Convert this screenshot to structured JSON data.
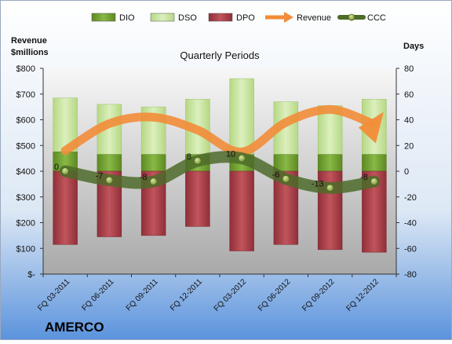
{
  "chart_data": {
    "type": "bar",
    "title": "Quarterly Periods",
    "company": "AMERCO",
    "y_left_label": [
      "Revenue",
      "$millions"
    ],
    "y_right_label": "Days",
    "categories": [
      "FQ 03-2011",
      "FQ 06-2011",
      "FQ 09-2011",
      "FQ 12-2011",
      "FQ 03-2012",
      "FQ 06-2012",
      "FQ 09-2012",
      "FQ 12-2012"
    ],
    "y_left_ticks": [
      "$-",
      "$100",
      "$200",
      "$300",
      "$400",
      "$500",
      "$600",
      "$700",
      "$800"
    ],
    "y_left_range": [
      0,
      800
    ],
    "y_right_ticks": [
      "-80",
      "-60",
      "-40",
      "-20",
      "0",
      "20",
      "40",
      "60",
      "80"
    ],
    "y_right_range": [
      -80,
      80
    ],
    "series": [
      {
        "name": "DIO",
        "color": "#6f9c2e",
        "values": [
          15,
          13,
          13,
          13,
          13,
          13,
          13,
          13
        ]
      },
      {
        "name": "DSO",
        "color": "#c6e19a",
        "values": [
          42,
          39,
          37,
          43,
          59,
          41,
          38,
          43
        ]
      },
      {
        "name": "DPO",
        "color": "#b2404a",
        "values": [
          -57,
          -51,
          -50,
          -43,
          -62,
          -57,
          -61,
          -63
        ]
      },
      {
        "name": "Revenue",
        "color": "#f28c38",
        "values": [
          480,
          585,
          610,
          560,
          475,
          590,
          640,
          545
        ]
      },
      {
        "name": "CCC",
        "color": "#4e6b2a",
        "values": [
          0,
          -7,
          -8,
          8,
          10,
          -6,
          -13,
          -8
        ]
      }
    ],
    "ccc_labels": [
      "0",
      "-7",
      "-8",
      "8",
      "10",
      "-6",
      "-13",
      "-8"
    ],
    "legend": [
      "DIO",
      "DSO",
      "DPO",
      "Revenue",
      "CCC"
    ],
    "legend_position": "top",
    "grid": false
  }
}
